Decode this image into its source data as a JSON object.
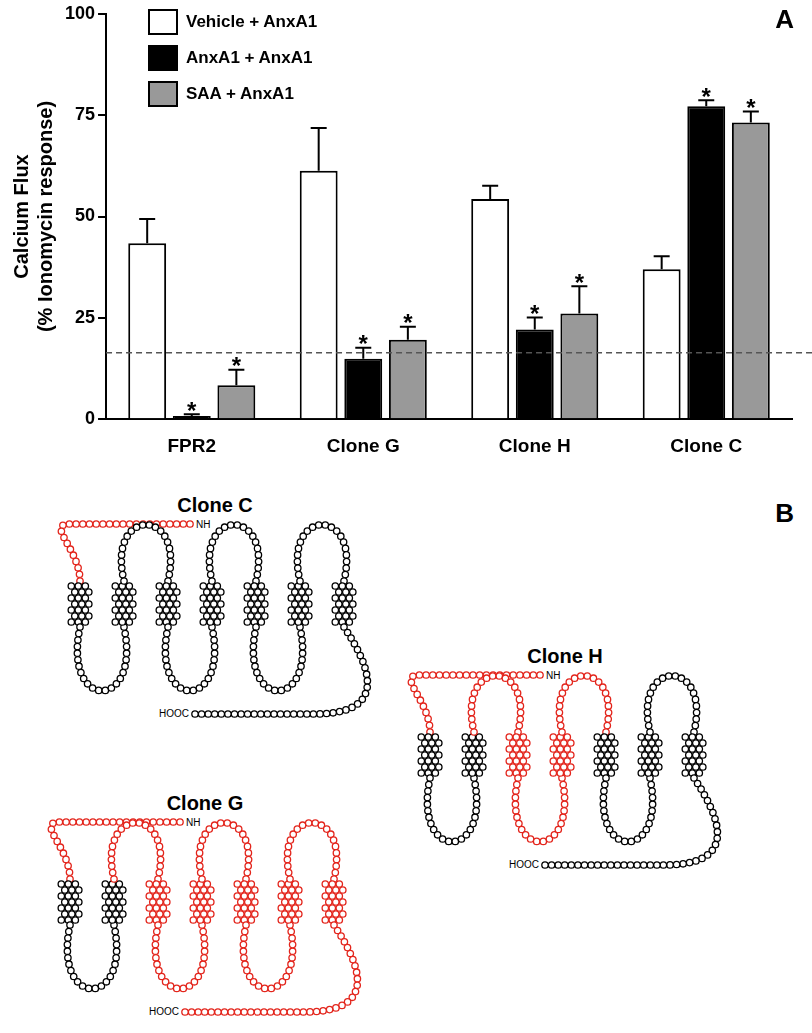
{
  "chart_data": {
    "type": "bar",
    "panel_label": "A",
    "y_label": [
      "Calcium Flux",
      "(% Ionomycin response)"
    ],
    "categories": [
      "FPR2",
      "Clone G",
      "Clone H",
      "Clone C"
    ],
    "series": [
      {
        "name": "Vehicle + AnxA1",
        "color": "#ffffff",
        "values": [
          43.4,
          61.3,
          54.3,
          37.0
        ],
        "errors": [
          6.0,
          10.5,
          3.3,
          3.2
        ]
      },
      {
        "name": "AnxA1 + AnxA1",
        "color": "#000000",
        "values": [
          0.8,
          14.9,
          22.1,
          77.2
        ],
        "errors": [
          0.4,
          2.7,
          3.0,
          1.5
        ],
        "bar_annotations": [
          "*",
          "*",
          "*",
          "*"
        ]
      },
      {
        "name": "SAA + AnxA1",
        "color": "#999999",
        "values": [
          8.4,
          19.6,
          26.1,
          73.2
        ],
        "errors": [
          3.8,
          3.2,
          6.7,
          2.7
        ],
        "bar_annotations": [
          "*",
          "*",
          "*",
          "*"
        ]
      }
    ],
    "reference_line": {
      "value": 16.4,
      "line_style": "dashed"
    },
    "ylim": [
      0,
      100
    ],
    "yticks": [
      0,
      25,
      50,
      75,
      100
    ],
    "grid": false,
    "legend": "top-left"
  },
  "diagram": {
    "panel_label": "B",
    "n_label": "NH",
    "c_label": "HOOC",
    "clones": [
      {
        "name": "Clone C",
        "colors": [
          "#e3241b",
          "#000000",
          "#000000",
          "#000000",
          "#000000",
          "#000000",
          "#000000",
          "#000000",
          "#000000",
          "#000000",
          "#000000",
          "#000000",
          "#000000",
          "#000000",
          "#000000"
        ]
      },
      {
        "name": "Clone H",
        "colors": [
          "#e3241b",
          "#000000",
          "#000000",
          "#000000",
          "#e3241b",
          "#e3241b",
          "#e3241b",
          "#e3241b",
          "#e3241b",
          "#000000",
          "#000000",
          "#000000",
          "#000000",
          "#000000",
          "#000000"
        ]
      },
      {
        "name": "Clone G",
        "colors": [
          "#e3241b",
          "#000000",
          "#000000",
          "#000000",
          "#e3241b",
          "#e3241b",
          "#e3241b",
          "#e3241b",
          "#e3241b",
          "#e3241b",
          "#e3241b",
          "#e3241b",
          "#e3241b",
          "#e3241b",
          "#e3241b"
        ]
      }
    ]
  }
}
